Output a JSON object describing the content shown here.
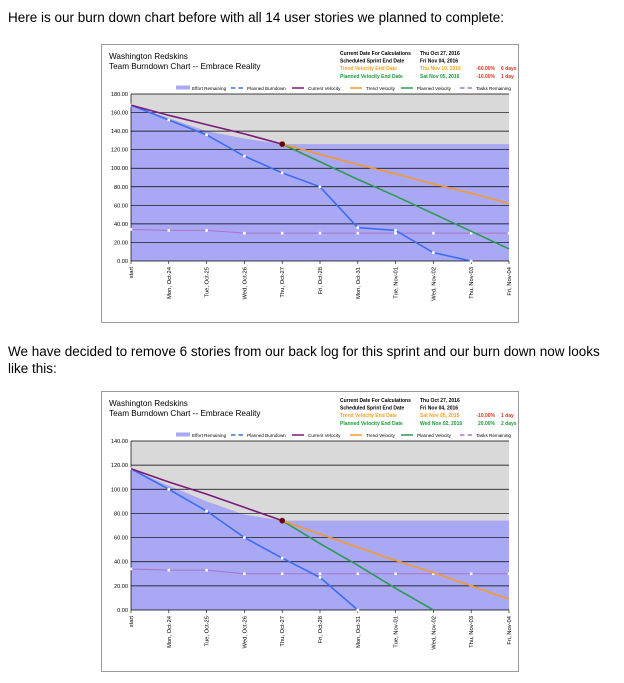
{
  "page": {
    "paragraph_1": "Here is our burn down chart before with all 14 user stories we planned to complete:",
    "paragraph_2": "We have decided to remove 6 stories from our back log for this sprint and our burn down now looks like this:"
  },
  "legend_labels": [
    "Effort Remaining",
    "Planned Burndown",
    "Current Velocity",
    "Trend Velocity",
    "Planned Velocity",
    "Tasks Remaining"
  ],
  "colors": {
    "effort_fill": "#a8a8f4",
    "header_gray": "#d9d9d9",
    "planned_burndown": "#3c6ef0",
    "current_velocity": "#7a1a7a",
    "trend_velocity": "#f59a2a",
    "planned_velocity": "#2e9a52",
    "tasks_remaining": "#b070c8",
    "info_orange": "#f5a020",
    "info_red": "#e03020",
    "info_green": "#1a9a3a"
  },
  "chart_data": [
    {
      "type": "area",
      "title": "Washington Redskins",
      "subtitle": "Team Burndown Chart -- Embrace Reality",
      "info": {
        "rows": [
          {
            "label": "Current Date For Calculations",
            "value": "Thu Oct 27, 2016",
            "pct": "",
            "days": "",
            "color": "black"
          },
          {
            "label": "Scheduled Sprint End Date",
            "value": "Fri Nov 04, 2016",
            "pct": "",
            "days": "",
            "color": "black"
          },
          {
            "label": "Trend Velocity End Date",
            "value": "Thu Nov 10, 2016",
            "pct": "-60.00%",
            "days": "6 days",
            "color": "orange_red"
          },
          {
            "label": "Planned Velocity End Date",
            "value": "Sat Nov 05, 2016",
            "pct": "-10.00%",
            "days": "1 day",
            "color": "green_red"
          }
        ]
      },
      "categories": [
        "start",
        "Mon, Oct-24",
        "Tue, Oct-25",
        "Wed, Oct-26",
        "Thu, Oct-27",
        "Fri, Oct-28",
        "Mon, Oct-31",
        "Tue, Nov-01",
        "Wed, Nov-02",
        "Thu, Nov-03",
        "Fri, Nov-04"
      ],
      "yticks": [
        "0.00",
        "20.00",
        "40.00",
        "60.00",
        "80.00",
        "100.00",
        "120.00",
        "140.00",
        "160.00",
        "180.00"
      ],
      "ylim": [
        0,
        180
      ],
      "grid": true,
      "legend_position": "top",
      "series": [
        {
          "name": "Effort Remaining",
          "kind": "area",
          "values": [
            168,
            154,
            140,
            132,
            126,
            126,
            126,
            126,
            126,
            126,
            126
          ]
        },
        {
          "name": "Planned Burndown",
          "kind": "line-markers",
          "values": [
            168,
            152,
            136,
            113,
            95,
            80,
            36,
            33,
            9,
            0,
            null
          ]
        },
        {
          "name": "Current Velocity",
          "kind": "line",
          "values": [
            168,
            157,
            147,
            137,
            126,
            null,
            null,
            null,
            null,
            null,
            null
          ]
        },
        {
          "name": "Trend Velocity",
          "kind": "line",
          "values": [
            null,
            null,
            null,
            null,
            126,
            115,
            104,
            94,
            83,
            73,
            62
          ]
        },
        {
          "name": "Planned Velocity",
          "kind": "line",
          "values": [
            null,
            null,
            null,
            null,
            126,
            107,
            88,
            70,
            51,
            32,
            13
          ]
        },
        {
          "name": "Tasks Remaining",
          "kind": "line-markers",
          "values": [
            34,
            33,
            33,
            30,
            30,
            30,
            30,
            30,
            30,
            30,
            30
          ]
        }
      ],
      "current_point": {
        "index": 4,
        "value": 126
      }
    },
    {
      "type": "area",
      "title": "Washington Redskins",
      "subtitle": "Team Burndown Chart -- Embrace Reality",
      "info": {
        "rows": [
          {
            "label": "Current Date For Calculations",
            "value": "Thu Oct 27, 2016",
            "pct": "",
            "days": "",
            "color": "black"
          },
          {
            "label": "Scheduled Sprint End Date",
            "value": "Fri Nov 04, 2016",
            "pct": "",
            "days": "",
            "color": "black"
          },
          {
            "label": "Trend Velocity End Date",
            "value": "Sat Nov 05, 2016",
            "pct": "-10.00%",
            "days": "1 day",
            "color": "orange_red"
          },
          {
            "label": "Planned Velocity End Date",
            "value": "Wed Nov 02, 2016",
            "pct": "20.00%",
            "days": "2 days",
            "color": "green_green"
          }
        ]
      },
      "categories": [
        "start",
        "Mon, Oct-24",
        "Tue, Oct-25",
        "Wed, Oct-26",
        "Thu, Oct-27",
        "Fri, Oct-28",
        "Mon, Oct-31",
        "Tue, Nov-01",
        "Wed, Nov-02",
        "Thu, Nov-03",
        "Fri, Nov-04"
      ],
      "yticks": [
        "0.00",
        "20.00",
        "40.00",
        "60.00",
        "80.00",
        "100.00",
        "120.00",
        "140.00"
      ],
      "ylim": [
        0,
        140
      ],
      "grid": true,
      "legend_position": "top",
      "series": [
        {
          "name": "Effort Remaining",
          "kind": "area",
          "values": [
            117,
            103,
            90,
            79,
            74,
            74,
            74,
            74,
            74,
            74,
            74
          ]
        },
        {
          "name": "Planned Burndown",
          "kind": "line-markers",
          "values": [
            117,
            100,
            82,
            60,
            43,
            27,
            0,
            null,
            null,
            null,
            null
          ]
        },
        {
          "name": "Current Velocity",
          "kind": "line",
          "values": [
            117,
            106,
            96,
            85,
            74,
            null,
            null,
            null,
            null,
            null,
            null
          ]
        },
        {
          "name": "Trend Velocity",
          "kind": "line",
          "values": [
            null,
            null,
            null,
            null,
            74,
            63,
            52,
            41,
            31,
            20,
            9
          ]
        },
        {
          "name": "Planned Velocity",
          "kind": "line",
          "values": [
            null,
            null,
            null,
            null,
            74,
            55,
            37,
            18,
            0,
            null,
            null
          ]
        },
        {
          "name": "Tasks Remaining",
          "kind": "line-markers",
          "values": [
            34,
            33,
            33,
            30,
            30,
            30,
            30,
            30,
            30,
            30,
            30
          ]
        }
      ],
      "current_point": {
        "index": 4,
        "value": 74
      }
    }
  ]
}
